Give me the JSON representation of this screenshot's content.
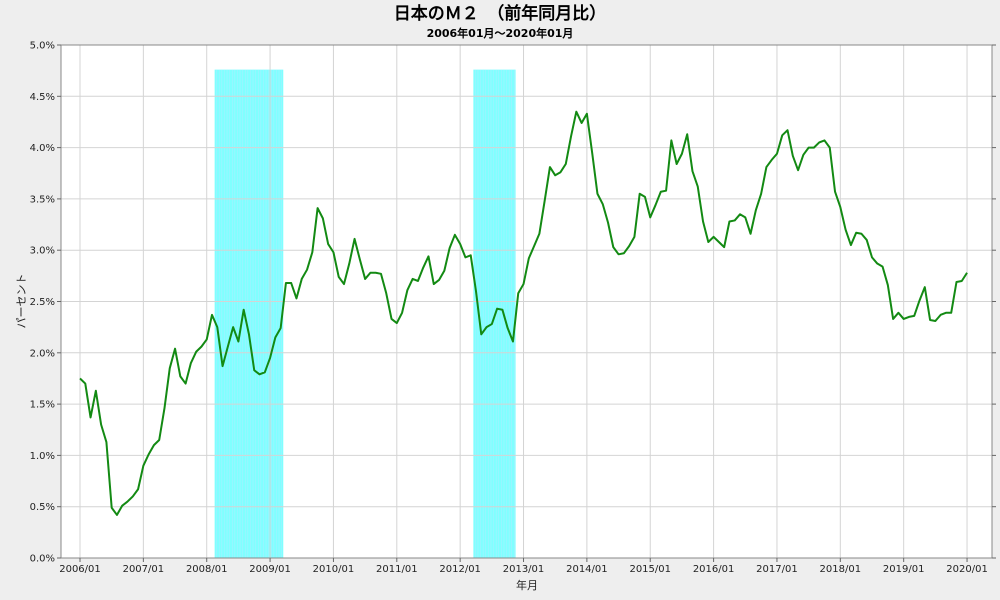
{
  "chart_data": {
    "type": "line",
    "title": "日本のＭ２　（前年同月比）",
    "subtitle": "2006年01月～2020年01月",
    "xlabel": "年月",
    "ylabel": "パーセント",
    "x_tick_labels": [
      "2006/01",
      "2007/01",
      "2008/01",
      "2009/01",
      "2010/01",
      "2011/01",
      "2012/01",
      "2013/01",
      "2014/01",
      "2015/01",
      "2016/01",
      "2017/01",
      "2018/01",
      "2019/01",
      "2020/01"
    ],
    "y_tick_labels": [
      "0.0%",
      "0.5%",
      "1.0%",
      "1.5%",
      "2.0%",
      "2.5%",
      "3.0%",
      "3.5%",
      "4.0%",
      "4.5%",
      "5.0%"
    ],
    "ylim": [
      0,
      5
    ],
    "grid": true,
    "line_color": "#138a13",
    "shade_color": "#80ffff",
    "shaded_periods": [
      {
        "start": "2008/03",
        "end": "2009/03"
      },
      {
        "start": "2012/04",
        "end": "2012/11"
      }
    ],
    "series": [
      {
        "x_start": "2006/01",
        "values": [
          1.75,
          1.7,
          1.37,
          1.63,
          1.3,
          1.13,
          0.49,
          0.42,
          0.51,
          0.55,
          0.6,
          0.67,
          0.9,
          1.01,
          1.1,
          1.15,
          1.46,
          1.85,
          2.04,
          1.77,
          1.7,
          1.9,
          2.01,
          2.06,
          2.13,
          2.37,
          2.25,
          1.87,
          2.06,
          2.25,
          2.11,
          2.42,
          2.18,
          1.83,
          1.79,
          1.81,
          1.95,
          2.15,
          2.24,
          2.68,
          2.68,
          2.53,
          2.72,
          2.81,
          2.98,
          3.41,
          3.31,
          3.06,
          2.98,
          2.74,
          2.67,
          2.87,
          3.11,
          2.91,
          2.72,
          2.78,
          2.78,
          2.77,
          2.58,
          2.33,
          2.29,
          2.39,
          2.61,
          2.72,
          2.7,
          2.83,
          2.94,
          2.67,
          2.71,
          2.8,
          3.02,
          3.15,
          3.06,
          2.93,
          2.95,
          2.6,
          2.18,
          2.25,
          2.28,
          2.43,
          2.42,
          2.24,
          2.11,
          2.58,
          2.67,
          2.92,
          3.04,
          3.16,
          3.48,
          3.81,
          3.73,
          3.76,
          3.84,
          4.11,
          4.35,
          4.24,
          4.33,
          3.95,
          3.55,
          3.45,
          3.27,
          3.03,
          2.96,
          2.97,
          3.04,
          3.13,
          3.55,
          3.52,
          3.32,
          3.44,
          3.57,
          3.58,
          4.07,
          3.84,
          3.94,
          4.13,
          3.77,
          3.62,
          3.28,
          3.08,
          3.13,
          3.08,
          3.03,
          3.28,
          3.29,
          3.35,
          3.32,
          3.16,
          3.39,
          3.55,
          3.81,
          3.88,
          3.94,
          4.12,
          4.17,
          3.92,
          3.78,
          3.93,
          4.0,
          4.0,
          4.05,
          4.07,
          4.0,
          3.57,
          3.42,
          3.2,
          3.05,
          3.17,
          3.16,
          3.1,
          2.93,
          2.87,
          2.84,
          2.66,
          2.33,
          2.39,
          2.33,
          2.35,
          2.36,
          2.51,
          2.64,
          2.32,
          2.31,
          2.37,
          2.39,
          2.39,
          2.69,
          2.7,
          2.78
        ]
      }
    ]
  }
}
